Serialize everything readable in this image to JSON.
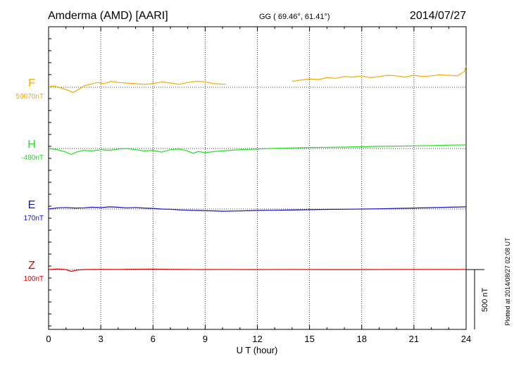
{
  "chart_data": {
    "type": "line",
    "title": "Amderma (AMD)  [AARI]",
    "subtitle": "GG ( 69.46°,  61.41°)",
    "date": "2014/07/27",
    "xlabel": "U T (hour)",
    "xlim": [
      0,
      24
    ],
    "xticks": [
      0,
      3,
      6,
      9,
      12,
      15,
      18,
      21,
      24
    ],
    "grid": true,
    "scale_bar": {
      "label": "500 nT",
      "value": 500,
      "unit": "nT"
    },
    "footer": "Plotted at 2014/08/27 02:08 UT",
    "series": [
      {
        "name": "F",
        "baseline_label": "59070nT",
        "baseline_value": 59070,
        "color": "#f5a800",
        "segments": [
          {
            "x": [
              0,
              0.3,
              0.6,
              0.9,
              1.2,
              1.4,
              1.6,
              1.8,
              2.1,
              2.4,
              2.8,
              3.2,
              3.6,
              4.0,
              4.5,
              5.0,
              5.5,
              6.0,
              6.5,
              7.0,
              7.5,
              8.0,
              8.5,
              9.0,
              9.5,
              10.2
            ],
            "y": [
              59075,
              59080,
              59070,
              59055,
              59040,
              59025,
              59040,
              59060,
              59085,
              59095,
              59110,
              59100,
              59120,
              59110,
              59105,
              59100,
              59095,
              59100,
              59115,
              59105,
              59095,
              59110,
              59120,
              59115,
              59100,
              59095
            ]
          },
          {
            "x": [
              14.0,
              14.5,
              15.0,
              15.5,
              16.0,
              16.5,
              17.0,
              17.5,
              18.0,
              18.5,
              19.0,
              19.5,
              20.0,
              20.5,
              21.0,
              21.5,
              22.0,
              22.5,
              23.0,
              23.5,
              23.9,
              24.0
            ],
            "y": [
              59120,
              59130,
              59140,
              59135,
              59150,
              59145,
              59160,
              59155,
              59165,
              59150,
              59160,
              59170,
              59165,
              59155,
              59170,
              59160,
              59165,
              59175,
              59170,
              59165,
              59200,
              59250
            ]
          }
        ]
      },
      {
        "name": "H",
        "baseline_label": "-480nT",
        "baseline_value": -480,
        "color": "#22dd22",
        "segments": [
          {
            "x": [
              0,
              0.5,
              1.0,
              1.3,
              1.6,
              2.0,
              2.5,
              3.0,
              3.5,
              4.0,
              4.5,
              5.0,
              5.5,
              6.0,
              6.5,
              7.0,
              7.5,
              8.0,
              8.3,
              8.6,
              9.0,
              9.5,
              10.0,
              11.0,
              12.0,
              13.0,
              14.0,
              15.0,
              16.0,
              17.0,
              18.0,
              19.0,
              20.0,
              21.0,
              22.0,
              23.0,
              24.0
            ],
            "y": [
              -480,
              -490,
              -510,
              -530,
              -510,
              -495,
              -500,
              -490,
              -495,
              -485,
              -480,
              -490,
              -500,
              -495,
              -510,
              -490,
              -485,
              -500,
              -520,
              -505,
              -515,
              -505,
              -500,
              -490,
              -485,
              -478,
              -475,
              -472,
              -470,
              -468,
              -465,
              -462,
              -460,
              -458,
              -455,
              -452,
              -450
            ]
          }
        ]
      },
      {
        "name": "E",
        "baseline_label": "170nT",
        "baseline_value": 170,
        "color": "#1010cc",
        "segments": [
          {
            "x": [
              0,
              0.5,
              1.0,
              1.5,
              2.0,
              2.5,
              3.0,
              3.5,
              4.0,
              4.5,
              5.0,
              5.5,
              6.0,
              6.5,
              7.0,
              7.5,
              8.0,
              8.5,
              9.0,
              9.5,
              10.0,
              11.0,
              12.0,
              13.0,
              14.0,
              15.0,
              16.0,
              17.0,
              18.0,
              19.0,
              20.0,
              21.0,
              22.0,
              23.0,
              24.0
            ],
            "y": [
              170,
              180,
              183,
              178,
              180,
              185,
              182,
              188,
              185,
              180,
              183,
              178,
              175,
              170,
              168,
              163,
              160,
              158,
              156,
              155,
              152,
              154,
              158,
              160,
              162,
              165,
              167,
              168,
              170,
              172,
              175,
              178,
              182,
              185,
              188
            ]
          }
        ]
      },
      {
        "name": "Z",
        "baseline_label": "100nT",
        "baseline_value": 100,
        "color": "#dd0000",
        "segments": [
          {
            "x": [
              0,
              0.5,
              1.0,
              1.3,
              1.6,
              2.0,
              3.0,
              4.0,
              5.0,
              6.0,
              7.0,
              8.0,
              9.0,
              10.0,
              12.0,
              14.0,
              16.0,
              18.0,
              20.0,
              22.0,
              24.0
            ],
            "y": [
              100,
              105,
              100,
              85,
              95,
              100,
              102,
              101,
              103,
              104,
              102,
              101,
              100,
              101,
              100,
              101,
              100,
              100,
              101,
              101,
              101
            ]
          }
        ]
      }
    ]
  }
}
